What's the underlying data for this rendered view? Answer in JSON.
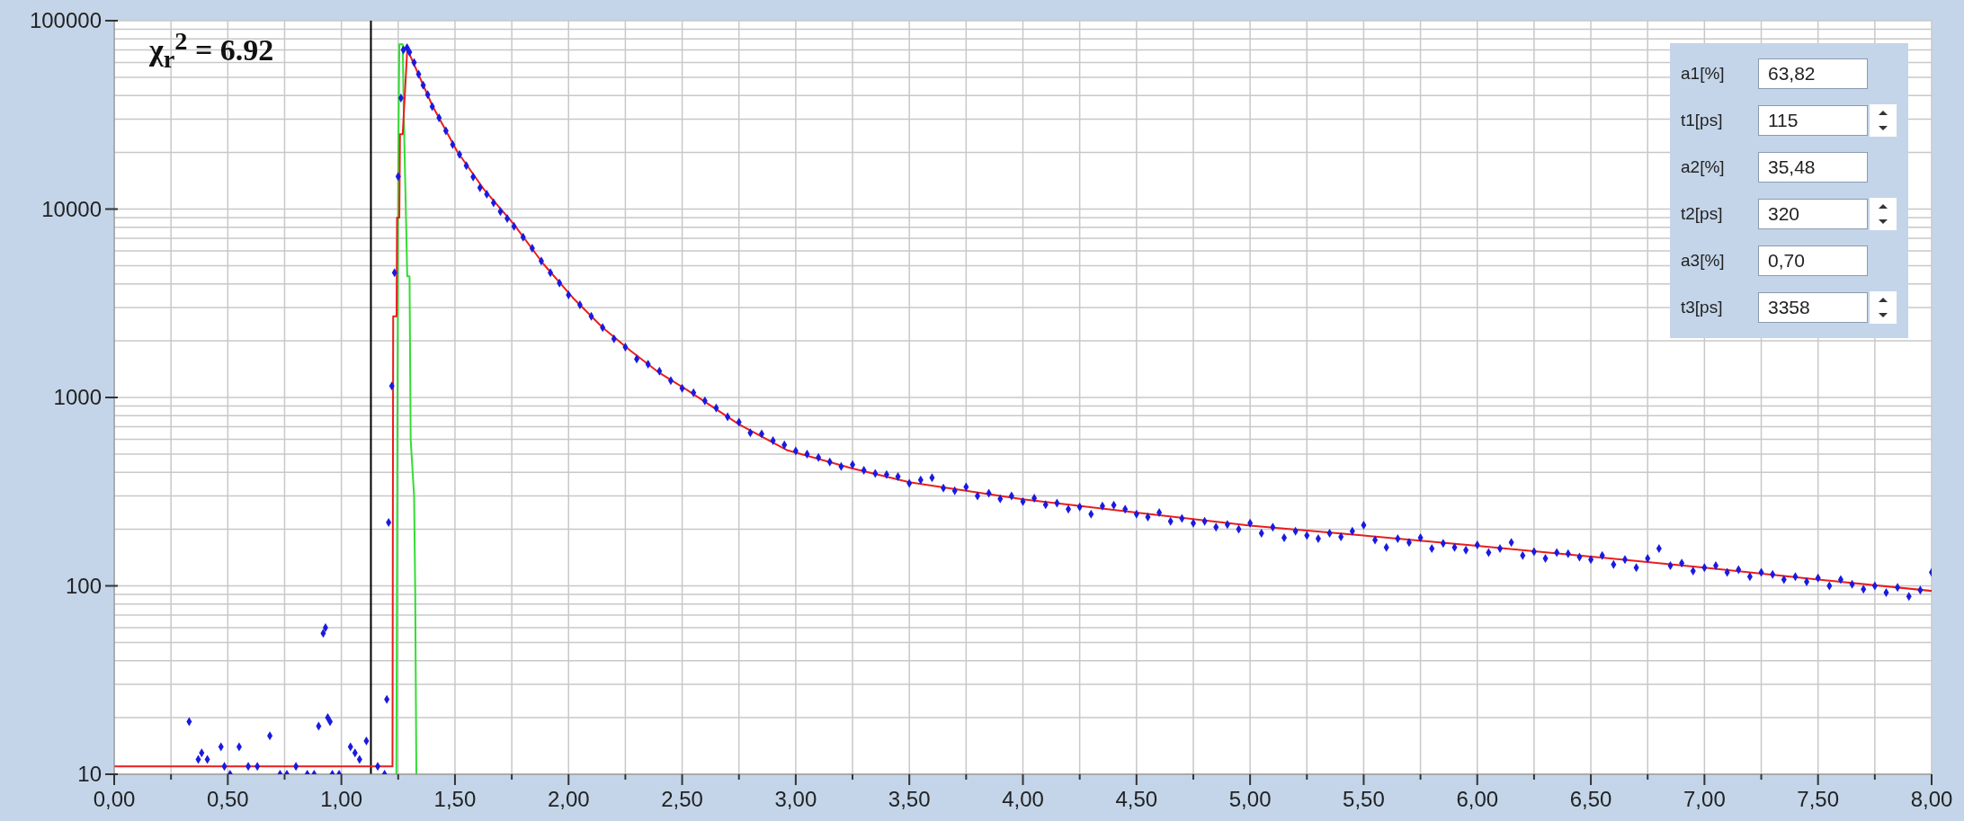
{
  "chart_data": {
    "type": "scatter",
    "log": "y",
    "grid": true,
    "xlim": [
      0,
      8
    ],
    "ylim": [
      10,
      100000
    ],
    "xticks": [
      {
        "value": 0,
        "label": "0,00"
      },
      {
        "value": 0.25,
        "label": null
      },
      {
        "value": 0.5,
        "label": "0,50"
      },
      {
        "value": 0.75,
        "label": null
      },
      {
        "value": 1,
        "label": "1,00"
      },
      {
        "value": 1.25,
        "label": null
      },
      {
        "value": 1.5,
        "label": "1,50"
      },
      {
        "value": 1.75,
        "label": null
      },
      {
        "value": 2,
        "label": "2,00"
      },
      {
        "value": 2.25,
        "label": null
      },
      {
        "value": 2.5,
        "label": "2,50"
      },
      {
        "value": 2.75,
        "label": null
      },
      {
        "value": 3,
        "label": "3,00"
      },
      {
        "value": 3.25,
        "label": null
      },
      {
        "value": 3.5,
        "label": "3,50"
      },
      {
        "value": 3.75,
        "label": null
      },
      {
        "value": 4,
        "label": "4,00"
      },
      {
        "value": 4.25,
        "label": null
      },
      {
        "value": 4.5,
        "label": "4,50"
      },
      {
        "value": 4.75,
        "label": null
      },
      {
        "value": 5,
        "label": "5,00"
      },
      {
        "value": 5.25,
        "label": null
      },
      {
        "value": 5.5,
        "label": "5,50"
      },
      {
        "value": 5.75,
        "label": null
      },
      {
        "value": 6,
        "label": "6,00"
      },
      {
        "value": 6.25,
        "label": null
      },
      {
        "value": 6.5,
        "label": "6,50"
      },
      {
        "value": 6.75,
        "label": null
      },
      {
        "value": 7,
        "label": "7,00"
      },
      {
        "value": 7.25,
        "label": null
      },
      {
        "value": 7.5,
        "label": "7,50"
      },
      {
        "value": 7.75,
        "label": null
      },
      {
        "value": 8,
        "label": "8,00"
      }
    ],
    "yticks": [
      10,
      {
        "value": 20,
        "label": null
      },
      {
        "value": 30,
        "label": null
      },
      {
        "value": 40,
        "label": null
      },
      {
        "value": 50,
        "label": null
      },
      {
        "value": 60,
        "label": null
      },
      {
        "value": 70,
        "label": null
      },
      {
        "value": 80,
        "label": null
      },
      {
        "value": 90,
        "label": null
      },
      100,
      {
        "value": 200,
        "label": null
      },
      {
        "value": 300,
        "label": null
      },
      {
        "value": 400,
        "label": null
      },
      {
        "value": 500,
        "label": null
      },
      {
        "value": 600,
        "label": null
      },
      {
        "value": 700,
        "label": null
      },
      {
        "value": 800,
        "label": null
      },
      {
        "value": 900,
        "label": null
      },
      1000,
      {
        "value": 2000,
        "label": null
      },
      {
        "value": 3000,
        "label": null
      },
      {
        "value": 4000,
        "label": null
      },
      {
        "value": 5000,
        "label": null
      },
      {
        "value": 6000,
        "label": null
      },
      {
        "value": 7000,
        "label": null
      },
      {
        "value": 8000,
        "label": null
      },
      {
        "value": 9000,
        "label": null
      },
      10000,
      {
        "value": 20000,
        "label": null
      },
      {
        "value": 30000,
        "label": null
      },
      {
        "value": 40000,
        "label": null
      },
      {
        "value": 50000,
        "label": null
      },
      {
        "value": 60000,
        "label": null
      },
      {
        "value": 70000,
        "label": null
      },
      {
        "value": 80000,
        "label": null
      },
      {
        "value": 90000,
        "label": null
      },
      100000
    ],
    "ref_lines": [
      {
        "axis": "x",
        "value": 1.13,
        "color": "#000000"
      }
    ],
    "annotations": [
      "χ$_{r}$$^{2}$ =  6.92",
      "a1[%]",
      "63,82",
      "t1[ps]",
      "115",
      "a2[%]",
      "35,48",
      "t2[ps]",
      "320",
      "a3[%]",
      "0,70",
      "t3[ps]",
      "3358"
    ],
    "series": [
      {
        "type": "line",
        "color": "#33dd33",
        "x": [
          1.242,
          1.25,
          1.255,
          1.27,
          1.275,
          1.29,
          1.3,
          1.305,
          1.32,
          1.325,
          1.33
        ],
        "values": [
          10,
          15000,
          75000,
          75000,
          30000,
          4400,
          4400,
          600,
          300,
          93,
          10
        ]
      },
      {
        "marker": "diamond",
        "color": "#1a1ae0",
        "x": [
          0.33,
          0.37,
          0.385,
          0.41,
          0.47,
          0.485,
          0.51,
          0.55,
          0.59,
          0.63,
          0.685,
          0.73,
          0.76,
          0.8,
          0.85,
          0.88,
          0.9,
          0.92,
          0.93,
          0.94,
          0.95,
          0.96,
          0.99,
          1.04,
          1.06,
          1.08,
          1.11,
          1.16,
          1.19,
          1.2,
          1.208,
          1.222,
          1.234,
          1.25,
          1.262,
          1.273,
          1.289,
          1.3,
          1.32,
          1.34,
          1.36,
          1.38,
          1.4,
          1.43,
          1.46,
          1.49,
          1.52,
          1.55,
          1.58,
          1.61,
          1.64,
          1.67,
          1.7,
          1.73,
          1.76,
          1.8,
          1.84,
          1.88,
          1.92,
          1.96,
          2,
          2.05,
          2.1,
          2.15,
          2.2,
          2.25,
          2.3,
          2.35,
          2.4,
          2.45,
          2.5,
          2.55,
          2.6,
          2.65,
          2.7,
          2.75,
          2.8,
          2.85,
          2.9,
          2.95,
          3,
          3.05,
          3.1,
          3.15,
          3.2,
          3.25,
          3.3,
          3.35,
          3.4,
          3.45,
          3.5,
          3.55,
          3.6,
          3.65,
          3.7,
          3.75,
          3.8,
          3.85,
          3.9,
          3.95,
          4,
          4.05,
          4.1,
          4.15,
          4.2,
          4.25,
          4.3,
          4.35,
          4.4,
          4.45,
          4.5,
          4.55,
          4.6,
          4.65,
          4.7,
          4.75,
          4.8,
          4.85,
          4.9,
          4.95,
          5,
          5.05,
          5.1,
          5.15,
          5.2,
          5.25,
          5.3,
          5.35,
          5.4,
          5.45,
          5.5,
          5.55,
          5.6,
          5.65,
          5.7,
          5.75,
          5.8,
          5.85,
          5.9,
          5.95,
          6,
          6.05,
          6.1,
          6.15,
          6.2,
          6.25,
          6.3,
          6.35,
          6.4,
          6.45,
          6.5,
          6.55,
          6.6,
          6.65,
          6.7,
          6.75,
          6.8,
          6.85,
          6.9,
          6.95,
          7,
          7.05,
          7.1,
          7.15,
          7.2,
          7.25,
          7.3,
          7.35,
          7.4,
          7.45,
          7.5,
          7.55,
          7.6,
          7.65,
          7.7,
          7.75,
          7.8,
          7.85,
          7.9,
          7.95,
          8
        ],
        "values": [
          19,
          12,
          13,
          12,
          14,
          11,
          10,
          14,
          11,
          11,
          16,
          10,
          10,
          11,
          10,
          10,
          18,
          56,
          60,
          20,
          19,
          10,
          10,
          14,
          13,
          12,
          15,
          11,
          10,
          25,
          217,
          1150,
          4600,
          14900,
          38900,
          70000,
          72000,
          68000,
          60000,
          52000,
          45500,
          40500,
          35000,
          30500,
          26000,
          22000,
          19500,
          17000,
          14800,
          13000,
          12000,
          10800,
          9700,
          8900,
          8100,
          7100,
          6200,
          5300,
          4600,
          4050,
          3500,
          3100,
          2700,
          2350,
          2050,
          1850,
          1600,
          1500,
          1380,
          1230,
          1120,
          1060,
          960,
          880,
          790,
          740,
          650,
          640,
          590,
          560,
          520,
          500,
          480,
          455,
          430,
          440,
          410,
          395,
          390,
          380,
          350,
          365,
          375,
          330,
          320,
          335,
          300,
          310,
          290,
          300,
          280,
          292,
          270,
          275,
          255,
          262,
          240,
          265,
          268,
          255,
          240,
          232,
          245,
          220,
          228,
          215,
          220,
          205,
          212,
          200,
          215,
          190,
          205,
          180,
          195,
          185,
          178,
          190,
          182,
          195,
          210,
          175,
          160,
          178,
          170,
          180,
          158,
          168,
          160,
          155,
          165,
          150,
          158,
          170,
          145,
          152,
          140,
          150,
          148,
          142,
          138,
          145,
          130,
          138,
          125,
          140,
          158,
          128,
          132,
          120,
          125,
          128,
          118,
          122,
          112,
          118,
          115,
          108,
          112,
          105,
          110,
          100,
          108,
          102,
          96,
          100,
          92,
          98,
          88,
          95,
          118
        ]
      },
      {
        "type": "line",
        "color": "#e81e1e",
        "x": [
          0,
          1.225,
          1.228,
          1.243,
          1.245,
          1.255,
          1.258,
          1.27,
          1.29,
          1.4,
          1.51,
          1.63,
          1.76,
          1.89,
          2.02,
          2.15,
          2.27,
          2.4,
          2.52,
          2.75,
          2.96,
          3.25,
          3.5,
          4,
          4.5,
          5,
          5.5,
          6,
          6.5,
          7,
          7.5,
          8
        ],
        "values": [
          11,
          11,
          2700,
          2700,
          9000,
          9000,
          25000,
          25000,
          70600,
          35500,
          20200,
          12600,
          8280,
          5100,
          3370,
          2350,
          1780,
          1350,
          1100,
          720,
          526,
          420,
          355,
          288,
          245,
          209,
          185,
          163,
          143,
          125,
          108,
          94
        ]
      }
    ]
  }
}
